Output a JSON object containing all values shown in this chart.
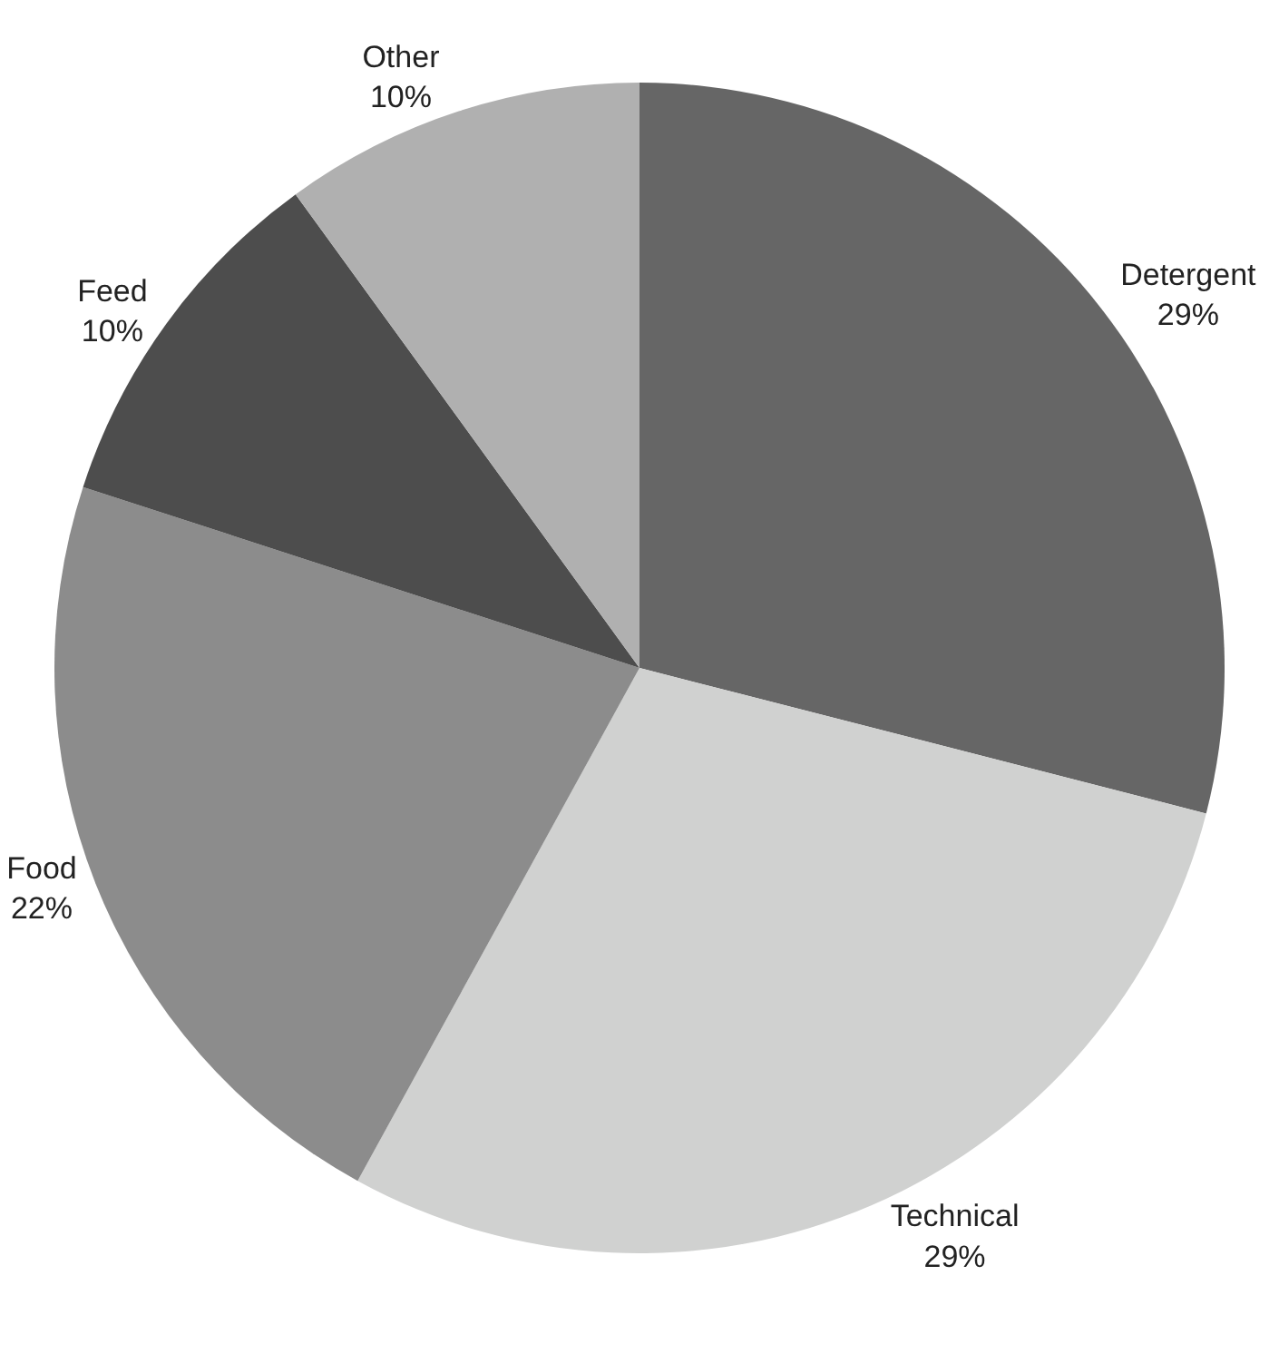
{
  "chart_data": {
    "type": "pie",
    "categories": [
      "Detergent",
      "Technical",
      "Food",
      "Feed",
      "Other"
    ],
    "values": [
      29,
      29,
      22,
      10,
      10
    ],
    "value_labels": [
      "29%",
      "29%",
      "22%",
      "10%",
      "10%"
    ],
    "colors": [
      "#666666",
      "#d0d1d0",
      "#8c8c8c",
      "#4d4d4d",
      "#b0b0b0"
    ],
    "legend": false
  }
}
